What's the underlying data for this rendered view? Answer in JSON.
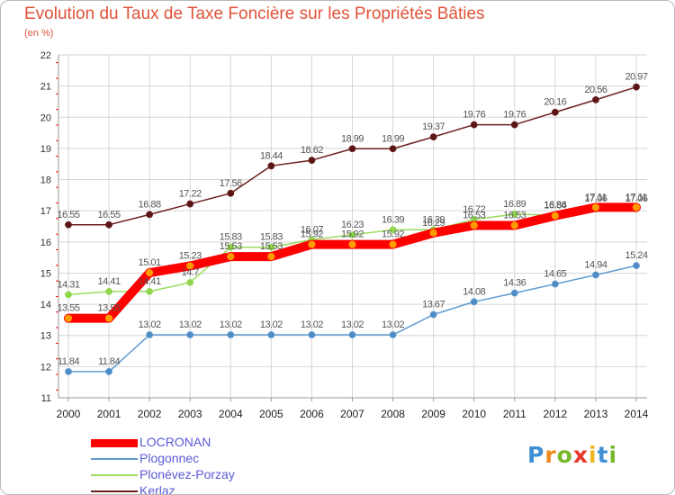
{
  "header": {
    "title": "Evolution du Taux de Taxe Foncière sur les Propriétés Bâties",
    "unit": "(en %)"
  },
  "brand": {
    "name": "Proxiti",
    "letters": [
      "P",
      "r",
      "o",
      "x",
      "i",
      "t",
      "i"
    ],
    "colors": [
      "#3f8fd4",
      "#f08a1e",
      "#78b82a",
      "#e8372b",
      "#f0b41e",
      "#3f8fd4",
      "#78b82a"
    ]
  },
  "colors": {
    "title": "#e0533a",
    "grid": "#d6d6d6",
    "axis": "#9a9a9a",
    "tick_red": "#ff0000"
  },
  "chart_data": {
    "type": "line",
    "title": "Evolution du Taux de Taxe Foncière sur les Propriétés Bâties",
    "ylabel": "(en %)",
    "xlabel": "",
    "ylim": [
      11,
      22
    ],
    "yticks": [
      11,
      12,
      13,
      14,
      15,
      16,
      17,
      18,
      19,
      20,
      21,
      22
    ],
    "grid": true,
    "legend_position": "bottom-left",
    "categories": [
      "2000",
      "2001",
      "2002",
      "2003",
      "2004",
      "2005",
      "2006",
      "2007",
      "2008",
      "2009",
      "2010",
      "2011",
      "2012",
      "2013",
      "2014"
    ],
    "series": [
      {
        "name": "Kerlaz",
        "color": "#6d1f1f",
        "label_color": "#555555",
        "values": [
          16.55,
          16.55,
          16.88,
          17.22,
          17.56,
          18.44,
          18.62,
          18.99,
          18.99,
          19.37,
          19.76,
          19.76,
          20.16,
          20.56,
          20.97
        ],
        "labels": [
          "16.55",
          "16.55",
          "16.88",
          "17.22",
          "17.56",
          "18.44",
          "18.62",
          "18.99",
          "18.99",
          "19.37",
          "19.76",
          "19.76",
          "20.16",
          "20.56",
          "20.97"
        ]
      },
      {
        "name": "Plogonnec",
        "color": "#5e9bd0",
        "label_color": "#555555",
        "values": [
          11.84,
          11.84,
          13.02,
          13.02,
          13.02,
          13.02,
          13.02,
          13.02,
          13.02,
          13.67,
          14.08,
          14.36,
          14.65,
          14.94,
          15.24
        ],
        "labels": [
          "11.84",
          "11.84",
          "13.02",
          "13.02",
          "13.02",
          "13.02",
          "13.02",
          "13.02",
          "13.02",
          "13.67",
          "14.08",
          "14.36",
          "14.65",
          "14.94",
          "15.24"
        ]
      },
      {
        "name": "Plonévez-Porzay",
        "color": "#9bdc5e",
        "label_color": "#555555",
        "values": [
          14.31,
          14.41,
          14.41,
          14.7,
          15.83,
          15.83,
          16.07,
          16.23,
          16.39,
          16.39,
          16.72,
          16.89,
          16.86,
          17.06,
          17.06
        ],
        "labels": [
          "14.31",
          "14.41",
          "14.41",
          "14.7",
          "15.83",
          "15.83",
          "16.07",
          "16.23",
          "16.39",
          "16.39",
          "16.72",
          "16.89",
          "16.86",
          "17.06",
          "17.06"
        ]
      },
      {
        "name": "LOCRONAN",
        "color": "#ff0000",
        "label_color": "#555555",
        "values": [
          13.55,
          13.55,
          15.01,
          15.23,
          15.53,
          15.53,
          15.92,
          15.92,
          15.92,
          16.29,
          16.53,
          16.53,
          16.84,
          17.11,
          17.11
        ],
        "labels": [
          "13.55",
          "13.55",
          "15.01",
          "15.23",
          "15.53",
          "15.53",
          "15.92",
          "15.92",
          "15.92",
          "16.29",
          "16.53",
          "16.53",
          "16.84",
          "17.11",
          "17.11"
        ]
      }
    ],
    "legend": [
      {
        "name": "LOCRONAN",
        "color": "#ff0000"
      },
      {
        "name": "Plogonnec",
        "color": "#5e9bd0"
      },
      {
        "name": "Plonévez-Porzay",
        "color": "#9bdc5e"
      },
      {
        "name": "Kerlaz",
        "color": "#6d1f1f"
      }
    ]
  }
}
